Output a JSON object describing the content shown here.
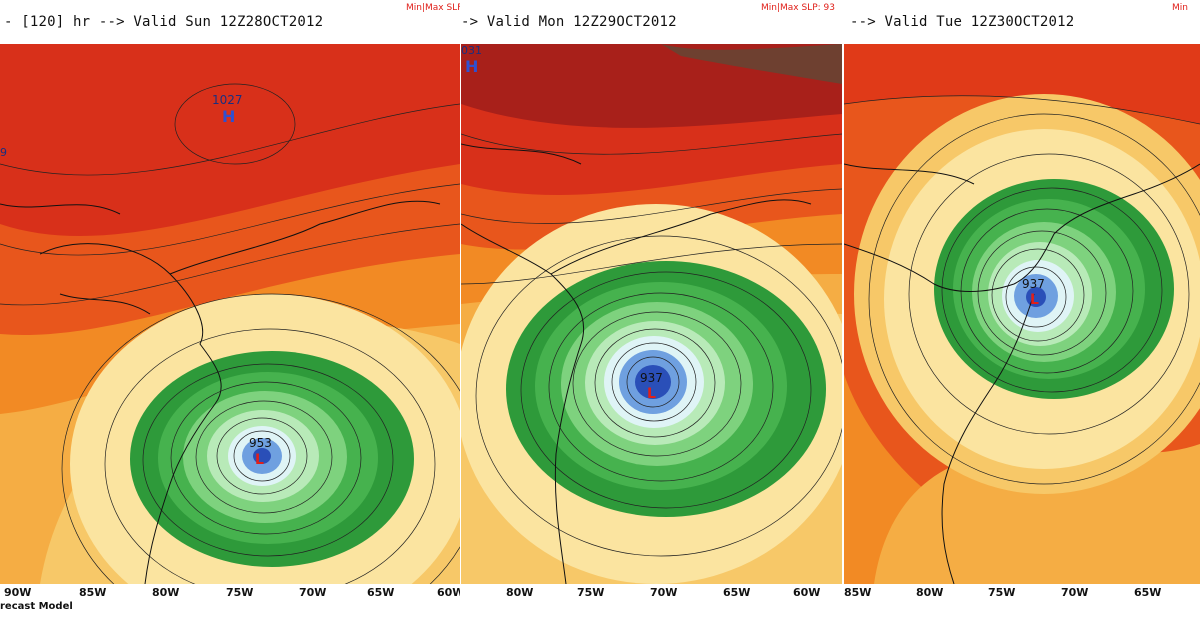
{
  "panels": [
    {
      "title": "- [120] hr --> Valid Sun 12Z28OCT2012",
      "minmax": "Min|Max SLF",
      "low_value": "953",
      "low_symbol": "L",
      "high_value": "1027",
      "high_symbol": "H",
      "edge_label": "9",
      "ticks": [
        "90W",
        "85W",
        "80W",
        "75W",
        "70W",
        "65W",
        "60W"
      ]
    },
    {
      "title": "-> Valid Mon 12Z29OCT2012",
      "minmax": "Min|Max SLP: 93",
      "low_value": "937",
      "low_symbol": "L",
      "high_value": "031",
      "high_symbol": "H",
      "ticks": [
        "80W",
        "75W",
        "70W",
        "65W",
        "60W"
      ]
    },
    {
      "title": "--> Valid Tue 12Z30OCT2012",
      "minmax": "Min",
      "low_value": "937",
      "low_symbol": "L",
      "ticks": [
        "85W",
        "80W",
        "75W",
        "70W",
        "65W"
      ]
    }
  ],
  "footer": "recast Model",
  "colors": {
    "outer": "#e03a18",
    "mid": "#f28a24",
    "light": "#f7c868",
    "cream": "#fbe9a8",
    "green": "#2e9a3a",
    "lightgreen": "#b8eab8",
    "blue": "#2a4fb8",
    "low_mark": "#e0201a",
    "high_mark": "#3050d0"
  }
}
